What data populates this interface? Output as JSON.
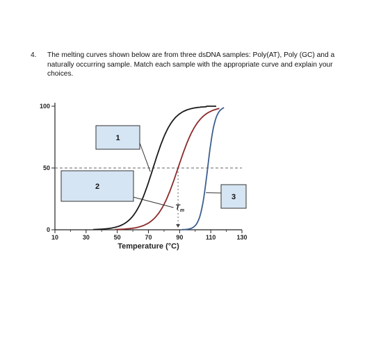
{
  "question": {
    "number": "4.",
    "text": "The melting curves shown below are from three dsDNA samples: Poly(AT), Poly (GC) and a naturally occurring sample. Match each sample with the appropriate curve and explain your choices."
  },
  "chart_data": {
    "type": "line",
    "xlabel": "Temperature (°C)",
    "ylabel": "",
    "xlim": [
      10,
      130
    ],
    "ylim": [
      0,
      100
    ],
    "x_ticks": [
      "10",
      "30",
      "50",
      "70",
      "90",
      "110",
      "130"
    ],
    "y_ticks": [
      "0",
      "50",
      "100"
    ],
    "threshold_y": 50,
    "tm_label": "T",
    "tm_subscript": "m",
    "tm_x": 89,
    "boxes": [
      {
        "label": "1",
        "points_to_series": 0
      },
      {
        "label": "2",
        "points_to_series": 1
      },
      {
        "label": "3",
        "points_to_series": 2
      }
    ],
    "series": [
      {
        "color": "#1a1a1a",
        "midpoint": 73,
        "steepness": 0.16,
        "x": [
          45,
          55,
          65,
          70,
          73,
          76,
          80,
          90,
          100,
          110
        ],
        "values": [
          1,
          6,
          22,
          38,
          50,
          62,
          77,
          94,
          99,
          100
        ]
      },
      {
        "color": "#8b2a2a",
        "midpoint": 89,
        "steepness": 0.15,
        "x": [
          60,
          70,
          80,
          85,
          89,
          93,
          98,
          105,
          112
        ],
        "values": [
          1,
          6,
          21,
          35,
          50,
          65,
          80,
          92,
          100
        ]
      },
      {
        "color": "#3d5f8f",
        "midpoint": 108,
        "steepness": 0.42,
        "x": [
          94,
          100,
          104,
          106,
          108,
          110,
          112,
          115
        ],
        "values": [
          0,
          4,
          16,
          30,
          50,
          70,
          84,
          100
        ]
      }
    ],
    "colors": {
      "box_fill": "#d6e5f3",
      "box_stroke": "#333333",
      "dash": "#666666"
    }
  }
}
